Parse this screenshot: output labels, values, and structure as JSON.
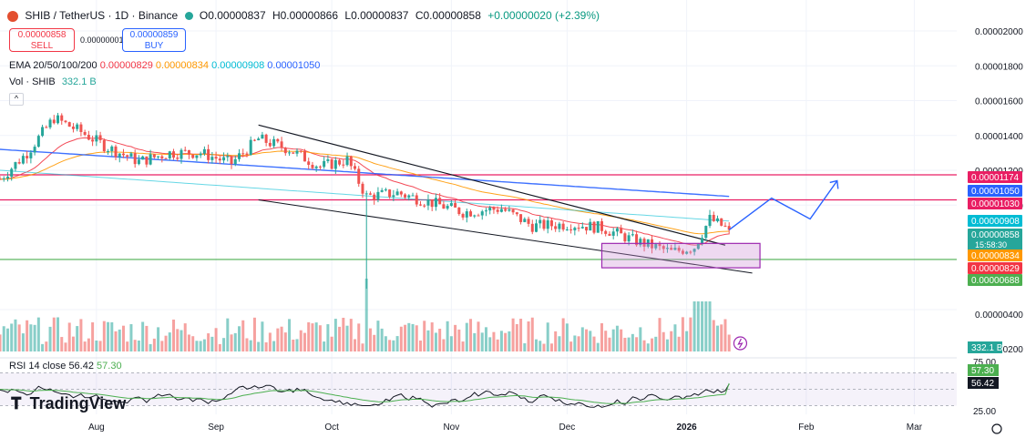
{
  "header": {
    "symbol": "SHIB / TetherUS · 1D · Binance",
    "ohlc": {
      "o": "O0.00000837",
      "h": "H0.00000866",
      "l": "L0.00000837",
      "c": "C0.00000858",
      "chg": "+0.00000020 (+2.39%)"
    },
    "sell_price": "0.00000858",
    "sell_label": "SELL",
    "buy_price": "0.00000859",
    "buy_label": "BUY",
    "spread": "0.00000001",
    "ema_title": "EMA 20/50/100/200",
    "ema_values": [
      "0.00000829",
      "0.00000834",
      "0.00000908",
      "0.00001050"
    ],
    "vol_title": "Vol · SHIB",
    "vol_value": "332.1 B",
    "rsi_title": "RSI 14 close",
    "rsi_values": [
      "56.42",
      "57.30"
    ],
    "brand": "TradingView"
  },
  "colors": {
    "up": "#26a69a",
    "down": "#ef5350",
    "ema20": "#f23645",
    "ema50": "#ff9800",
    "ema100": "#00bcd4",
    "ema200": "#2962ff",
    "resistance": "#e91e63",
    "support": "#4caf50",
    "rsi": "#131722",
    "rsi_ma": "#4caf50",
    "rsi_band": "#7e57c2",
    "projection": "#2962ff",
    "box": "#9c27b0"
  },
  "chart_data": {
    "type": "candlestick",
    "x_start": "2025-07-07",
    "x_end": "2026-03-12",
    "x_ticks": [
      {
        "date": "2025-08-01",
        "label": "Aug"
      },
      {
        "date": "2025-09-01",
        "label": "Sep"
      },
      {
        "date": "2025-10-01",
        "label": "Oct"
      },
      {
        "date": "2025-11-01",
        "label": "Nov"
      },
      {
        "date": "2025-12-01",
        "label": "Dec"
      },
      {
        "date": "2026-01-01",
        "label": "2026"
      },
      {
        "date": "2026-02-01",
        "label": "Feb"
      },
      {
        "date": "2026-03-01",
        "label": "Mar"
      }
    ],
    "y_range": [
      4e-07,
      2.1e-06
    ],
    "y_ticks": [
      {
        "v": 2e-06,
        "label": "0.00002000"
      },
      {
        "v": 1.8e-06,
        "label": "0.00001800"
      },
      {
        "v": 1.6e-06,
        "label": "0.00001600"
      },
      {
        "v": 1.4e-06,
        "label": "0.00001400"
      },
      {
        "v": 1.2e-06,
        "label": "0.00001200"
      },
      {
        "v": 1e-06,
        "label": "0.00001000"
      },
      {
        "v": 4e-07,
        "label": "0.00000400"
      },
      {
        "v": 2e-07,
        "label": "0.00000200"
      }
    ],
    "price_labels": [
      {
        "value": 1.174e-06,
        "label": "0.00001174",
        "color": "#e91e63"
      },
      {
        "value": 1.03e-06,
        "label": "0.00001030",
        "color": "#e91e63"
      },
      {
        "value": 1.05e-06,
        "label": "0.00001050",
        "color": "#2962ff"
      },
      {
        "value": 9.08e-07,
        "label": "0.00000908",
        "color": "#00bcd4"
      },
      {
        "value": 8.58e-07,
        "label": "0.00000858",
        "sub": "15:58:30",
        "color": "#26a69a"
      },
      {
        "value": 8.34e-07,
        "label": "0.00000834",
        "color": "#ff9800"
      },
      {
        "value": 8.29e-07,
        "label": "0.00000829",
        "color": "#f23645"
      },
      {
        "value": 6.88e-07,
        "label": "0.00000688",
        "color": "#4caf50"
      }
    ],
    "levels": [
      {
        "name": "resistance",
        "value": 1.174e-06
      },
      {
        "name": "resistance",
        "value": 1.03e-06
      },
      {
        "name": "support",
        "value": 6.88e-07
      }
    ],
    "projection_path": [
      {
        "date": "2026-01-12",
        "value": 8.58e-07
      },
      {
        "date": "2026-01-23",
        "value": 1.04e-06
      },
      {
        "date": "2026-02-02",
        "value": 9.2e-07
      },
      {
        "date": "2026-02-09",
        "value": 1.14e-06
      }
    ],
    "box": {
      "x0": "2025-12-10",
      "x1": "2026-01-20",
      "y0": 6.4e-07,
      "y1": 7.8e-07
    },
    "volume_label": "332.1 B",
    "rsi_ticks": [
      {
        "v": 75,
        "label": "75.00"
      },
      {
        "v": 25,
        "label": "25.00"
      }
    ],
    "rsi_labels": [
      {
        "v": 57.3,
        "label": "57.30",
        "color": "#4caf50"
      },
      {
        "v": 56.42,
        "label": "56.42",
        "color": "#131722"
      }
    ]
  }
}
